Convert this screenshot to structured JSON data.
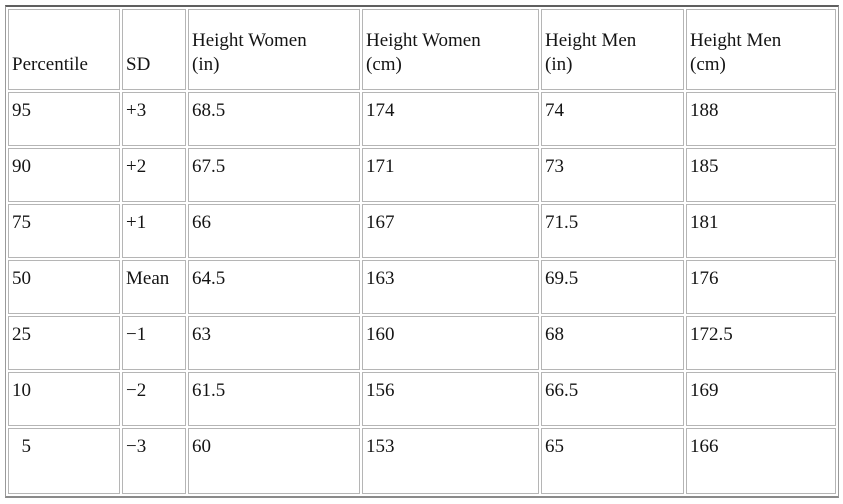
{
  "colors": {
    "background": "#ffffff",
    "text": "#141414",
    "cell_border": "#b5b5b5",
    "outer_border": "#9a9a9a"
  },
  "table": {
    "columns": [
      "Percentile",
      "SD",
      "Height Women\n(in)",
      "Height Women\n(cm)",
      "Height Men\n(in)",
      "Height Men\n(cm)"
    ],
    "rows": [
      [
        "95",
        "+3",
        "68.5",
        "174",
        "74",
        "188"
      ],
      [
        "90",
        "+2",
        "67.5",
        "171",
        "73",
        "185"
      ],
      [
        "75",
        "+1",
        "66",
        "167",
        "71.5",
        "181"
      ],
      [
        "50",
        "Mean",
        "64.5",
        "163",
        "69.5",
        "176"
      ],
      [
        "25",
        "−1",
        "63",
        "160",
        "68",
        "172.5"
      ],
      [
        "10",
        "−2",
        "61.5",
        "156",
        "66.5",
        "169"
      ],
      [
        "  5",
        "−3",
        "60",
        "153",
        "65",
        "166"
      ]
    ]
  }
}
